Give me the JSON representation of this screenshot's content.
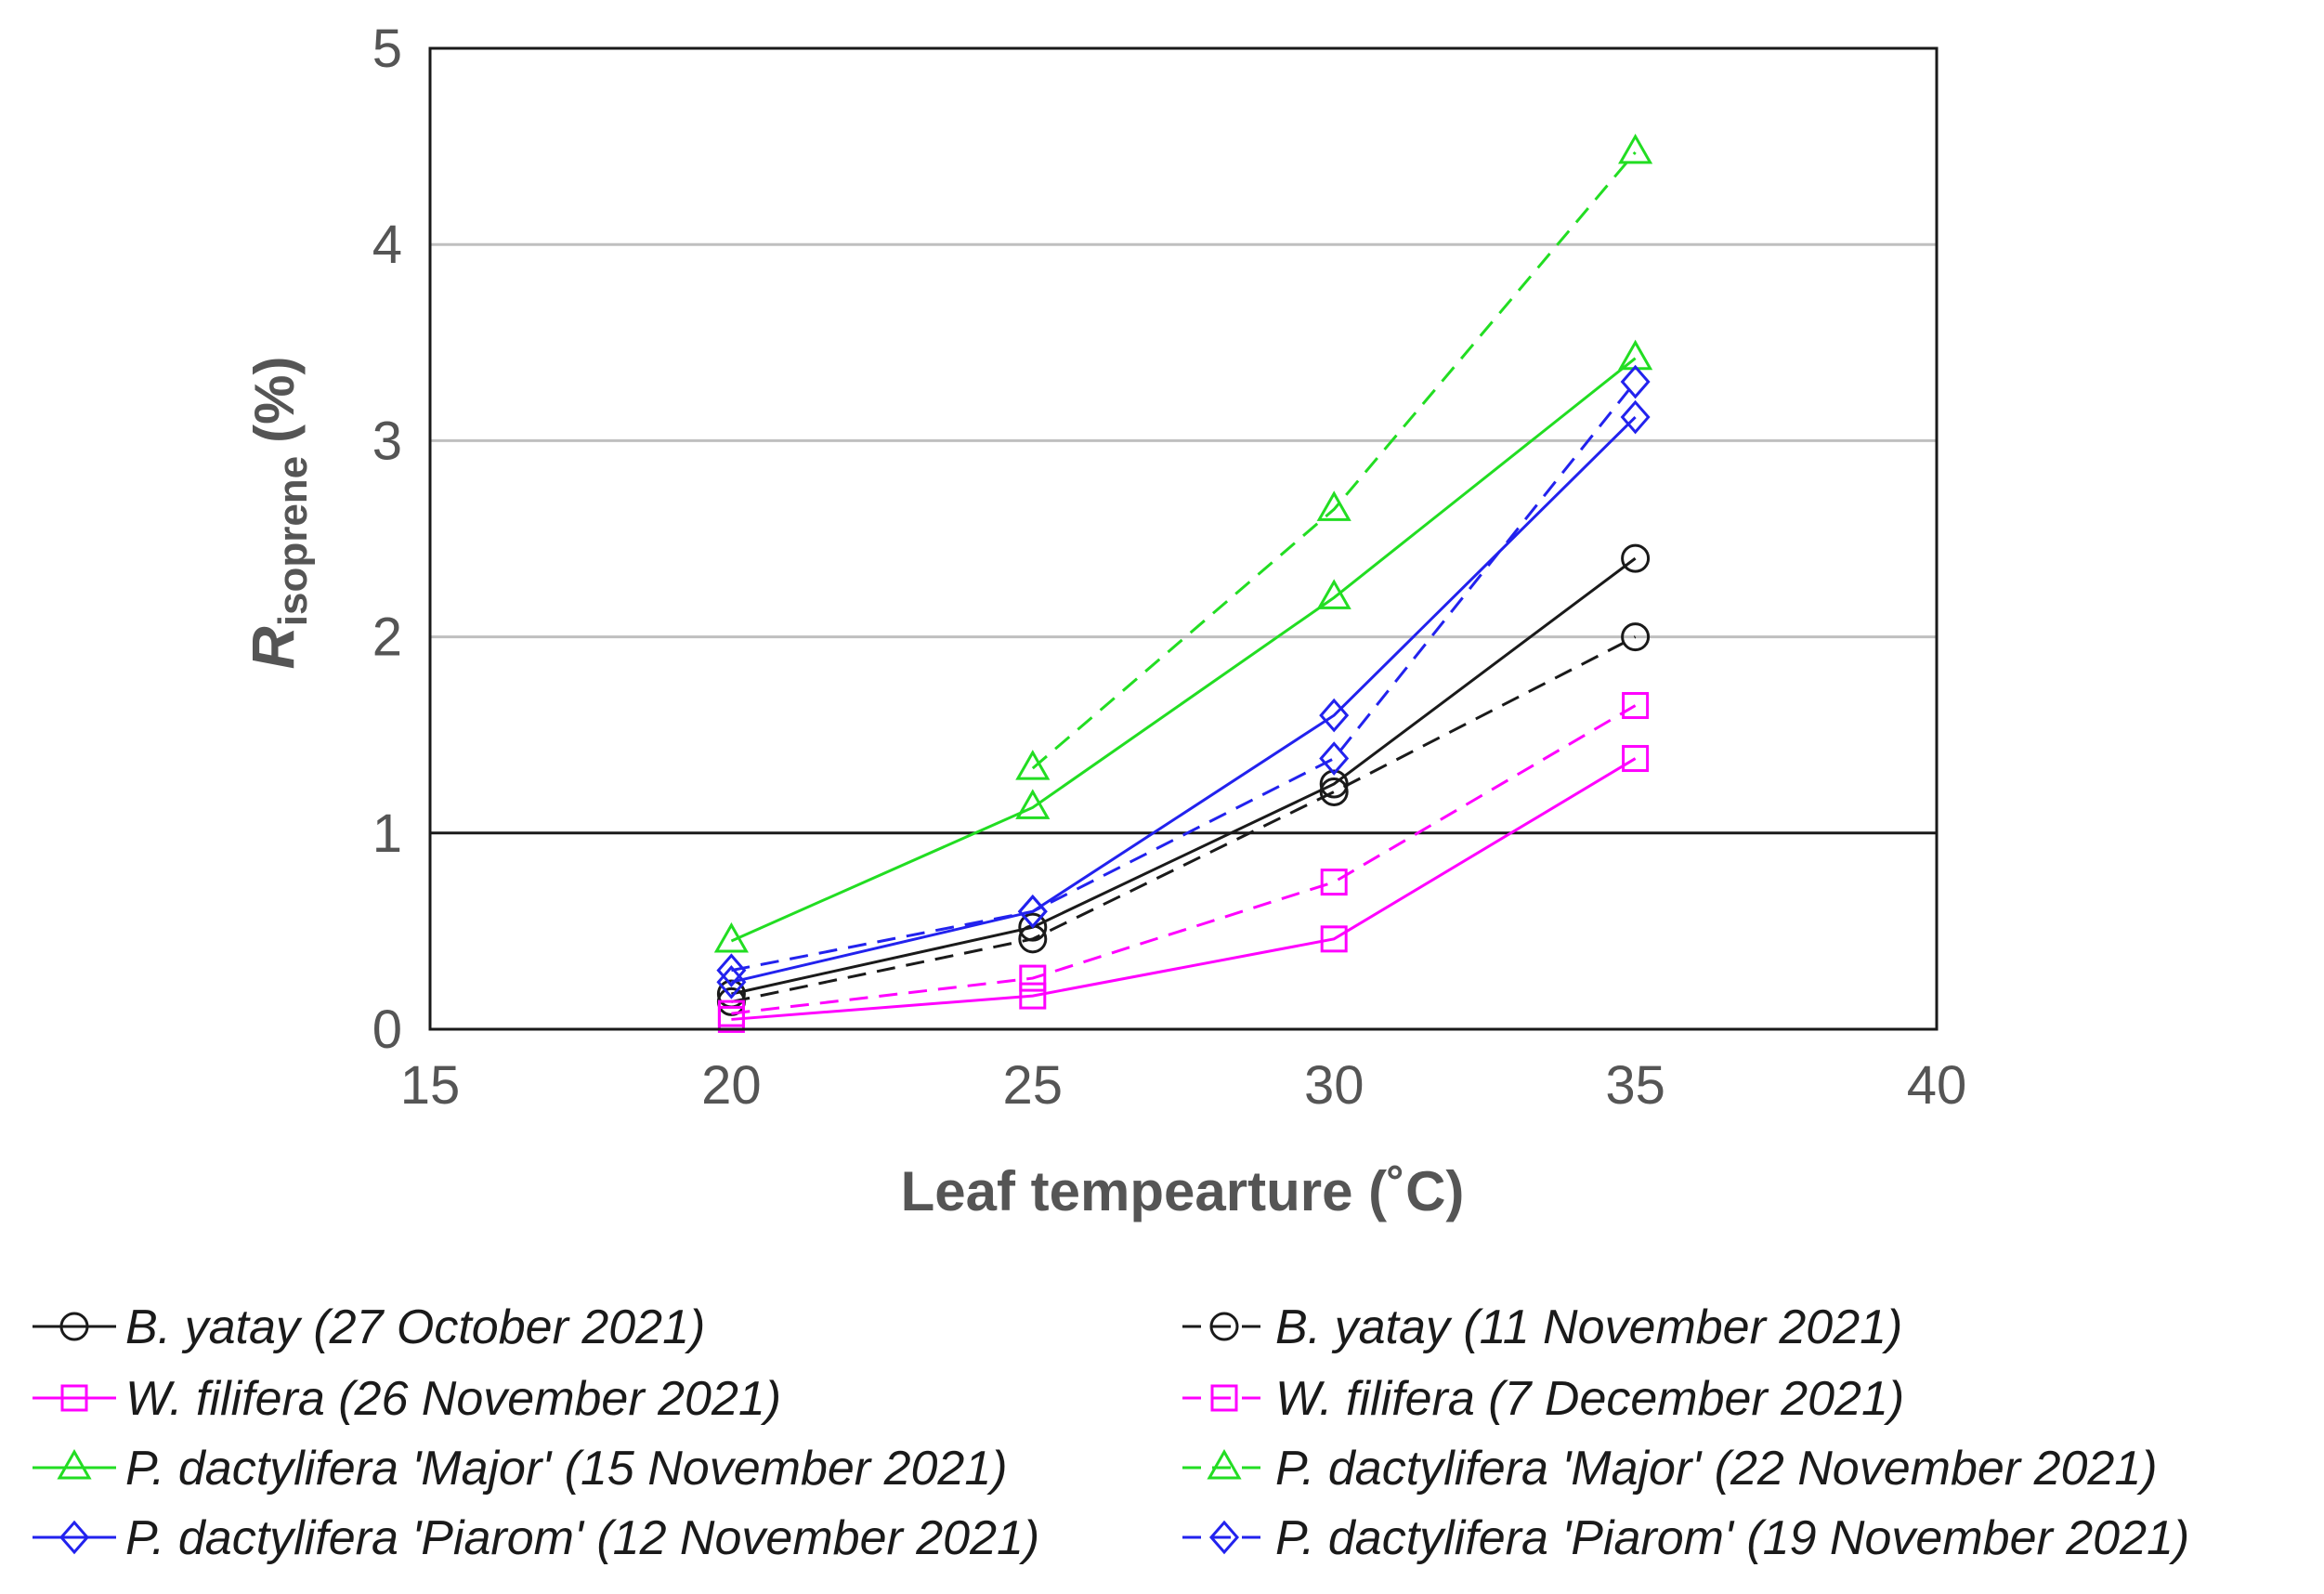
{
  "chart_data": {
    "type": "line",
    "title": "",
    "xlabel": "Leaf tempearture (˚C)",
    "ylabel_main": "R",
    "ylabel_sub": "isoprene",
    "ylabel_unit": "(%)",
    "xlim": [
      15,
      40
    ],
    "ylim": [
      0,
      5
    ],
    "xticks": [
      15,
      20,
      25,
      30,
      35,
      40
    ],
    "yticks": [
      0,
      1,
      2,
      3,
      4,
      5
    ],
    "reference_line_y": 1,
    "gridlines_y": [
      2,
      3,
      4
    ],
    "x": [
      20,
      25,
      30,
      35
    ],
    "legend_position": "bottom",
    "series": [
      {
        "name": "B. yatay (27 October 2021)",
        "color": "#1a1a1a",
        "dash": "solid",
        "marker": "circle",
        "values": [
          0.18,
          0.52,
          1.25,
          2.4
        ]
      },
      {
        "name": "B. yatay (11 November 2021)",
        "color": "#1a1a1a",
        "dash": "dashed",
        "marker": "circle",
        "values": [
          0.14,
          0.46,
          1.21,
          2.0
        ]
      },
      {
        "name": "W. filifera (26 November 2021)",
        "color": "#ff00ff",
        "dash": "solid",
        "marker": "square",
        "values": [
          0.05,
          0.17,
          0.46,
          1.38
        ]
      },
      {
        "name": "W. filifera (7 December 2021)",
        "color": "#ff00ff",
        "dash": "dashed",
        "marker": "square",
        "values": [
          0.08,
          0.26,
          0.75,
          1.65
        ]
      },
      {
        "name": "P. dactylifera 'Major' (15 November 2021)",
        "color": "#22dd22",
        "dash": "solid",
        "marker": "triangle",
        "values": [
          0.45,
          1.13,
          2.2,
          3.42
        ]
      },
      {
        "name": "P. dactylifera 'Major' (22 November 2021)",
        "color": "#22dd22",
        "dash": "dashed",
        "marker": "triangle",
        "values": [
          null,
          1.33,
          2.65,
          4.47
        ]
      },
      {
        "name": "P. dactylifera 'Piarom' (12 November 2021)",
        "color": "#2222ee",
        "dash": "solid",
        "marker": "diamond",
        "values": [
          0.24,
          0.6,
          1.6,
          3.12
        ]
      },
      {
        "name": "P. dactylifera 'Piarom' (19 November 2021)",
        "color": "#2222ee",
        "dash": "dashed",
        "marker": "diamond",
        "values": [
          0.3,
          0.6,
          1.38,
          3.3
        ]
      }
    ]
  }
}
